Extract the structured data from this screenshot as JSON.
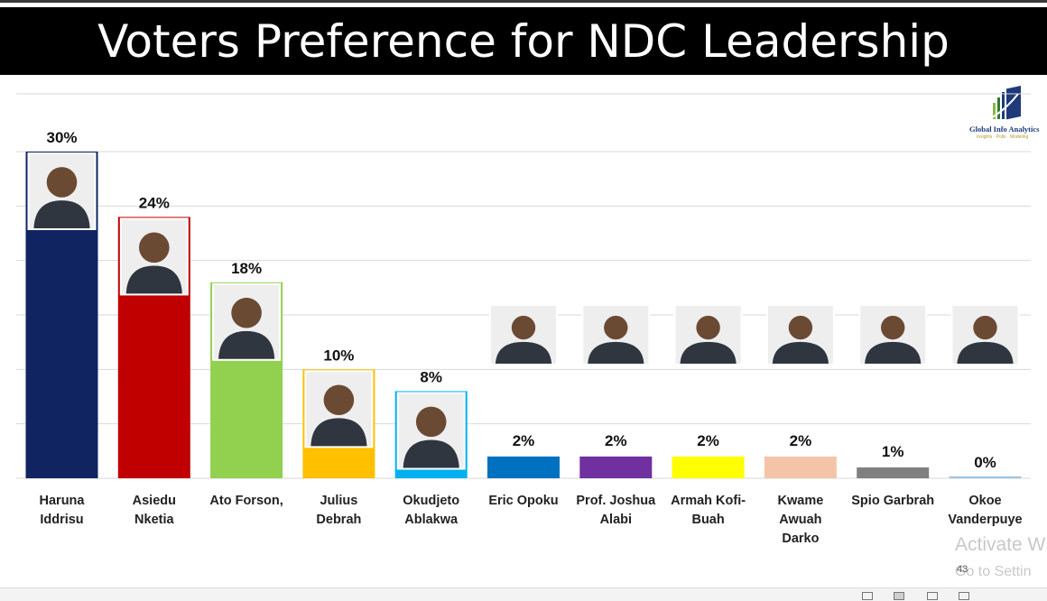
{
  "title": "Voters Preference for NDC Leadership",
  "logo": {
    "name": "Global Info Analytics",
    "tagline": "Insights · Polls · Modeling"
  },
  "watermark": {
    "line1": "Activate W",
    "line2": "Go to Settin"
  },
  "page_number": "43",
  "colors": {
    "title_bg": "#000000",
    "grid": "#d9d9d9"
  },
  "chart_data": {
    "type": "bar",
    "title": "Voters Preference for NDC Leadership",
    "xlabel": "",
    "ylabel": "",
    "ylim": [
      0,
      30
    ],
    "grid": true,
    "legend": "none",
    "categories": [
      [
        "Haruna",
        "Iddrisu"
      ],
      [
        "Asiedu",
        "Nketia"
      ],
      [
        "Ato Forson,"
      ],
      [
        "Julius",
        "Debrah"
      ],
      [
        "Okudjeto",
        "Ablakwa"
      ],
      [
        "Eric Opoku"
      ],
      [
        "Prof. Joshua",
        "Alabi"
      ],
      [
        "Armah Kofi-",
        "Buah"
      ],
      [
        "Kwame",
        "Awuah",
        "Darko"
      ],
      [
        "Spio Garbrah"
      ],
      [
        "Okoe",
        "Vanderpuye"
      ]
    ],
    "values": [
      30,
      24,
      18,
      10,
      8,
      2,
      2,
      2,
      2,
      1,
      0
    ],
    "data_labels": [
      "30%",
      "24%",
      "18%",
      "10%",
      "8%",
      "2%",
      "2%",
      "2%",
      "2%",
      "1%",
      "0%"
    ],
    "bar_colors": [
      "#0f2461",
      "#c00000",
      "#92d050",
      "#ffc000",
      "#00b0f0",
      "#0070c0",
      "#7030a0",
      "#ffff00",
      "#f4c4a9",
      "#808080",
      "#9dc3e6"
    ]
  }
}
